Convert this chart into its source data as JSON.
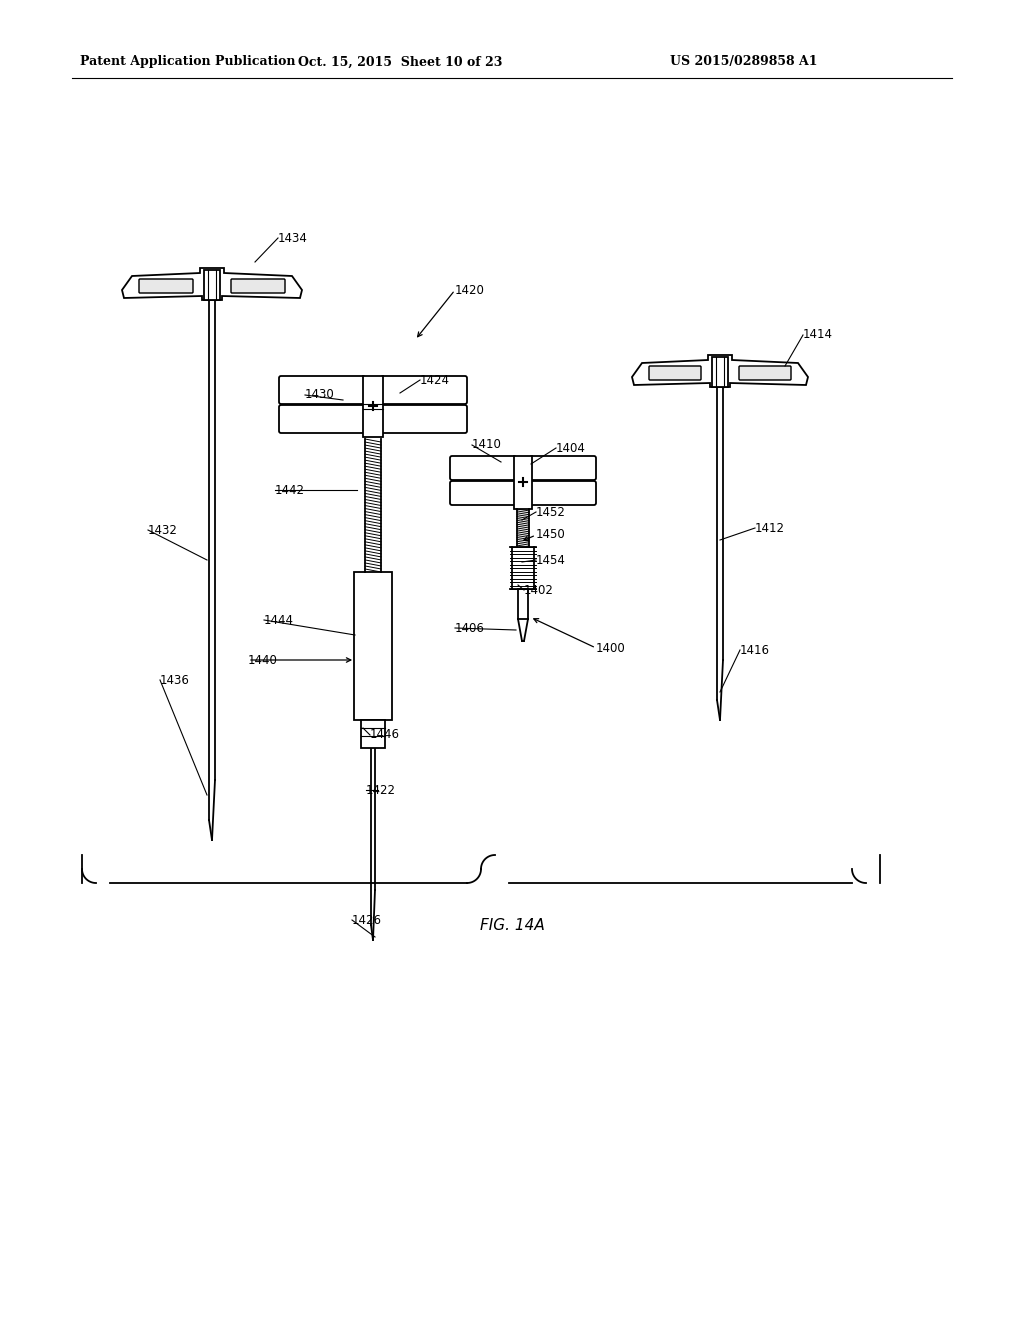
{
  "title_left": "Patent Application Publication",
  "title_mid": "Oct. 15, 2015  Sheet 10 of 23",
  "title_right": "US 2015/0289858 A1",
  "fig_label": "FIG. 14A",
  "bg_color": "#ffffff",
  "line_color": "#000000",
  "lw": 1.3,
  "fontsize_label": 8.5,
  "fontsize_header": 9,
  "fontsize_fig": 11
}
